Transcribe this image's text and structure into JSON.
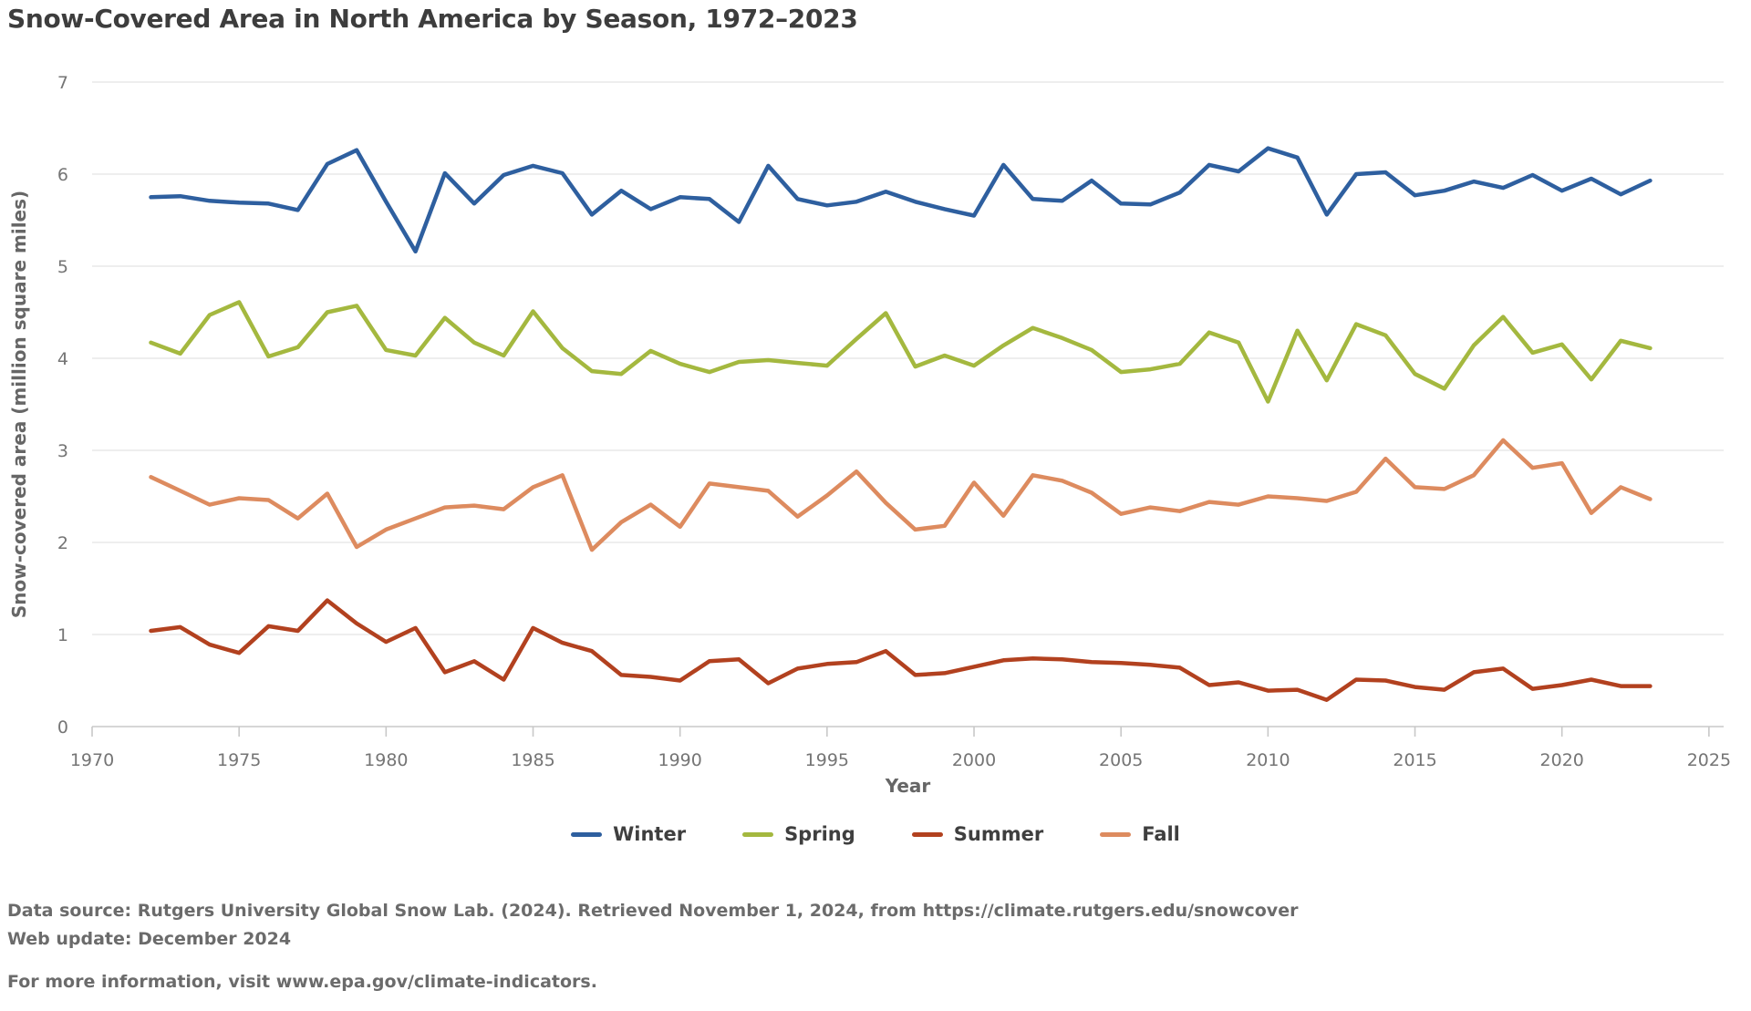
{
  "chart_data": {
    "type": "line",
    "title": "Snow-Covered Area in North America by Season, 1972–2023",
    "xlabel": "Year",
    "ylabel": "Snow-covered area (million square miles)",
    "xlim": [
      1970,
      2025.5
    ],
    "ylim": [
      0,
      7
    ],
    "xticks": [
      1970,
      1975,
      1980,
      1985,
      1990,
      1995,
      2000,
      2005,
      2010,
      2015,
      2020,
      2025
    ],
    "yticks": [
      0,
      1,
      2,
      3,
      4,
      5,
      6,
      7
    ],
    "grid": "horizontal-only",
    "legend_position": "bottom-center",
    "years": [
      1972,
      1973,
      1974,
      1975,
      1976,
      1977,
      1978,
      1979,
      1980,
      1981,
      1982,
      1983,
      1984,
      1985,
      1986,
      1987,
      1988,
      1989,
      1990,
      1991,
      1992,
      1993,
      1994,
      1995,
      1996,
      1997,
      1998,
      1999,
      2000,
      2001,
      2002,
      2003,
      2004,
      2005,
      2006,
      2007,
      2008,
      2009,
      2010,
      2011,
      2012,
      2013,
      2014,
      2015,
      2016,
      2017,
      2018,
      2019,
      2020,
      2021,
      2022,
      2023
    ],
    "series": [
      {
        "name": "Winter",
        "color": "#2e5f9f",
        "values": [
          5.75,
          5.76,
          5.71,
          5.69,
          5.68,
          5.61,
          6.11,
          6.26,
          5.7,
          5.16,
          6.01,
          5.68,
          5.99,
          6.09,
          6.01,
          5.56,
          5.82,
          5.62,
          5.75,
          5.73,
          5.48,
          6.09,
          5.73,
          5.66,
          5.7,
          5.81,
          5.7,
          5.62,
          5.55,
          6.1,
          5.73,
          5.71,
          5.93,
          5.68,
          5.67,
          5.8,
          6.1,
          6.03,
          6.28,
          6.18,
          5.56,
          6.0,
          6.02,
          5.77,
          5.82,
          5.92,
          5.85,
          5.99,
          5.82,
          5.95,
          5.78,
          5.93
        ]
      },
      {
        "name": "Spring",
        "color": "#a4b83f",
        "values": [
          4.17,
          4.05,
          4.47,
          4.61,
          4.02,
          4.12,
          4.5,
          4.57,
          4.09,
          4.03,
          4.44,
          4.17,
          4.03,
          4.51,
          4.11,
          3.86,
          3.83,
          4.08,
          3.94,
          3.85,
          3.96,
          3.98,
          3.95,
          3.92,
          4.21,
          4.49,
          3.91,
          4.03,
          3.92,
          4.14,
          4.33,
          4.22,
          4.09,
          3.85,
          3.88,
          3.94,
          4.28,
          4.17,
          3.53,
          4.3,
          3.76,
          4.37,
          4.25,
          3.83,
          3.67,
          4.14,
          4.45,
          4.06,
          4.15,
          3.77,
          4.19,
          4.11
        ]
      },
      {
        "name": "Summer",
        "color": "#b2411f",
        "values": [
          1.04,
          1.08,
          0.89,
          0.8,
          1.09,
          1.04,
          1.37,
          1.12,
          0.92,
          1.07,
          0.59,
          0.71,
          0.51,
          1.07,
          0.91,
          0.82,
          0.56,
          0.54,
          0.5,
          0.71,
          0.73,
          0.47,
          0.63,
          0.68,
          0.7,
          0.82,
          0.56,
          0.58,
          0.65,
          0.72,
          0.74,
          0.73,
          0.7,
          0.69,
          0.67,
          0.64,
          0.45,
          0.48,
          0.39,
          0.4,
          0.29,
          0.51,
          0.5,
          0.43,
          0.4,
          0.59,
          0.63,
          0.41,
          0.45,
          0.51,
          0.44,
          0.44
        ]
      },
      {
        "name": "Fall",
        "color": "#dd8b5f",
        "values": [
          2.71,
          2.56,
          2.41,
          2.48,
          2.46,
          2.26,
          2.53,
          1.95,
          2.14,
          2.26,
          2.38,
          2.4,
          2.36,
          2.6,
          2.73,
          1.92,
          2.22,
          2.41,
          2.17,
          2.64,
          2.6,
          2.56,
          2.28,
          2.51,
          2.77,
          2.43,
          2.14,
          2.18,
          2.65,
          2.29,
          2.73,
          2.67,
          2.54,
          2.31,
          2.38,
          2.34,
          2.44,
          2.41,
          2.5,
          2.48,
          2.45,
          2.55,
          2.91,
          2.6,
          2.58,
          2.73,
          3.11,
          2.81,
          2.86,
          2.32,
          2.6,
          2.47
        ]
      }
    ]
  },
  "footer": {
    "source_line": "Data source: Rutgers University Global Snow Lab. (2024). Retrieved November 1, 2024, from https://climate.rutgers.edu/snowcover",
    "update_line": "Web update: December 2024",
    "info_line": "For more information, visit www.epa.gov/climate-indicators."
  },
  "style_colors": {
    "gridline": "#e3e3e3",
    "axis_line": "#c8c8c8",
    "tick_text": "#757575",
    "title_text": "#3d3d3d",
    "axis_title_text": "#666666",
    "legend_text": "#3f3f3f",
    "footer_text": "#6b6b6b"
  }
}
